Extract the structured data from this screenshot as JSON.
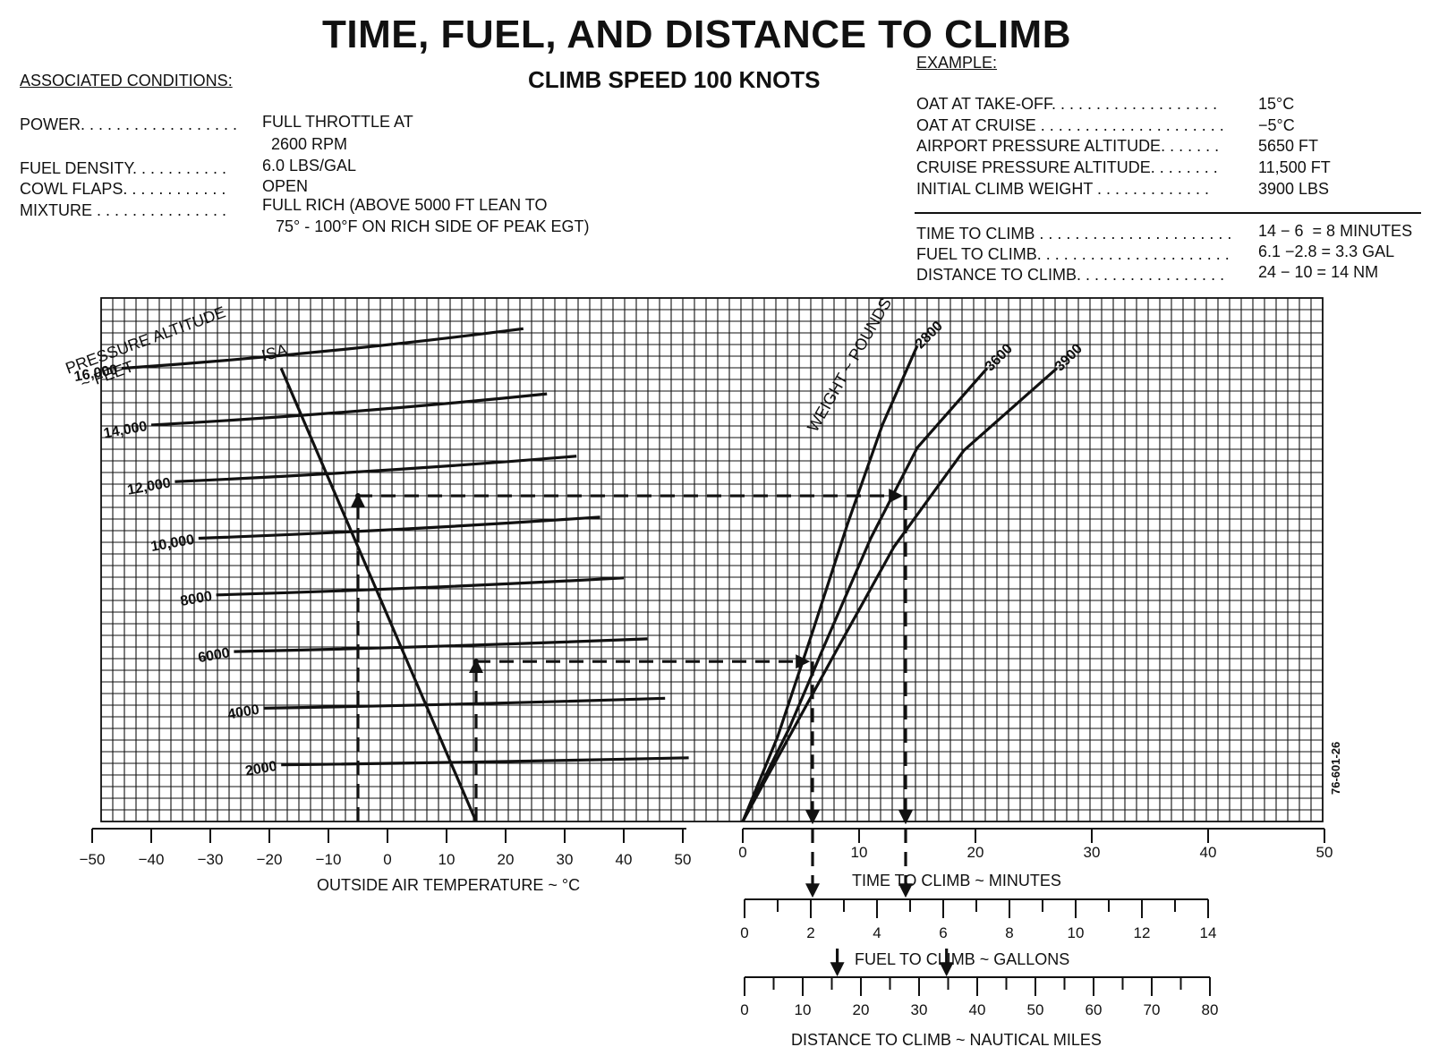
{
  "header": {
    "title": "TIME, FUEL, AND DISTANCE TO CLIMB",
    "subtitle": "CLIMB SPEED 100 KNOTS"
  },
  "associated_conditions": {
    "heading": "ASSOCIATED CONDITIONS:",
    "items": [
      {
        "label": "POWER. . . . . . . . . . . . . . . . . .",
        "value": "FULL THROTTLE AT"
      },
      {
        "label": "",
        "value": "  2600 RPM"
      },
      {
        "label": "FUEL DENSITY. . . . . . . . . . .",
        "value": "6.0 LBS/GAL"
      },
      {
        "label": "COWL FLAPS. . . . . . . . . . . .",
        "value": "OPEN"
      },
      {
        "label": "MIXTURE . . . . . . . . . . . . . . .",
        "value": "FULL RICH (ABOVE 5000 FT LEAN TO"
      },
      {
        "label": "",
        "value": "   75° - 100°F ON RICH SIDE OF PEAK EGT)"
      }
    ]
  },
  "example": {
    "heading": "EXAMPLE:",
    "inputs": [
      {
        "label": "OAT AT TAKE-OFF. . . . . . . . . . . . . . . . . . .",
        "value": "15°C"
      },
      {
        "label": "OAT AT CRUISE . . . . . . . . . . . . . . . . . . . . .",
        "value": "−5°C"
      },
      {
        "label": "AIRPORT PRESSURE ALTITUDE. . . . . . .",
        "value": "5650 FT"
      },
      {
        "label": "CRUISE PRESSURE ALTITUDE. . . . . . . .",
        "value": "11,500 FT"
      },
      {
        "label": "INITIAL CLIMB WEIGHT . . . . . . . . . . . . .",
        "value": "3900 LBS"
      }
    ],
    "results": [
      {
        "label": "TIME TO CLIMB . . . . . . . . . . . . . . . . . . . . . .",
        "value": "14 − 6  = 8 MINUTES"
      },
      {
        "label": "FUEL TO CLIMB. . . . . . . . . . . . . . . . . . . . . .",
        "value": "6.1 −2.8 = 3.3 GAL"
      },
      {
        "label": "DISTANCE TO CLIMB. . . . . . . . . . . . . . . . .",
        "value": "24 − 10 = 14 NM"
      }
    ]
  },
  "figure_id": "76-601-26",
  "colors": {
    "ink": "#111111",
    "paper": "#ffffff"
  },
  "chart_data": {
    "type": "line",
    "panels": [
      {
        "name": "temperature-altitude",
        "xlabel": "OUTSIDE AIR TEMPERATURE ~ °C",
        "ylabel_line1": "PRESSURE ALTITUDE",
        "ylabel_line2": "~ FEET",
        "x_ticks": [
          -50,
          -40,
          -30,
          -20,
          -10,
          0,
          10,
          20,
          30,
          40,
          50
        ],
        "x_tick_labels": [
          "−50",
          "−40",
          "−30",
          "−20",
          "−10",
          "0",
          "10",
          "20",
          "30",
          "40",
          "50"
        ],
        "isa_label": "ISA",
        "isa_line": [
          {
            "temp": -18,
            "alt": 16000
          },
          {
            "temp": 15,
            "alt": 0
          }
        ],
        "altitude_lines": [
          {
            "label": "16,000",
            "alt": 16000,
            "t_start": -45,
            "t_end": 23,
            "rise": 1400
          },
          {
            "label": "14,000",
            "alt": 14000,
            "t_start": -40,
            "t_end": 27,
            "rise": 1100
          },
          {
            "label": "12,000",
            "alt": 12000,
            "t_start": -36,
            "t_end": 32,
            "rise": 900
          },
          {
            "label": "10,000",
            "alt": 10000,
            "t_start": -32,
            "t_end": 36,
            "rise": 750
          },
          {
            "label": "8000",
            "alt": 8000,
            "t_start": -29,
            "t_end": 40,
            "rise": 600
          },
          {
            "label": "6000",
            "alt": 6000,
            "t_start": -26,
            "t_end": 44,
            "rise": 450
          },
          {
            "label": "4000",
            "alt": 4000,
            "t_start": -21,
            "t_end": 47,
            "rise": 350
          },
          {
            "label": "2000",
            "alt": 2000,
            "t_start": -18,
            "t_end": 51,
            "rise": 250
          }
        ]
      },
      {
        "name": "weight-time",
        "xlabel": "TIME TO CLIMB ~ MINUTES",
        "weight_label": "WEIGHT ~ POUNDS",
        "x_ticks": [
          0,
          10,
          20,
          30,
          40,
          50
        ],
        "x_tick_labels": [
          "0",
          "10",
          "20",
          "30",
          "40",
          "50"
        ],
        "weight_curves": [
          {
            "label": "2800",
            "points": [
              [
                0,
                0
              ],
              [
                3,
                3000
              ],
              [
                6,
                6700
              ],
              [
                9,
                10500
              ],
              [
                12,
                14000
              ],
              [
                15,
                16800
              ]
            ]
          },
          {
            "label": "3600",
            "points": [
              [
                0,
                0
              ],
              [
                4,
                3300
              ],
              [
                7,
                6200
              ],
              [
                11,
                10000
              ],
              [
                15,
                13200
              ],
              [
                21,
                16000
              ]
            ]
          },
          {
            "label": "3900",
            "points": [
              [
                0,
                0
              ],
              [
                4,
                3000
              ],
              [
                8,
                6000
              ],
              [
                13,
                9700
              ],
              [
                19,
                13100
              ],
              [
                27,
                16000
              ]
            ]
          }
        ]
      }
    ],
    "scales": [
      {
        "name": "fuel",
        "label": "FUEL  TO CLIMB ~ GALLONS",
        "min": 0,
        "max": 14,
        "tick_labels": [
          "0",
          "2",
          "4",
          "6",
          "8",
          "10",
          "12",
          "14"
        ]
      },
      {
        "name": "distance",
        "label": "DISTANCE TO CLIMB ~ NAUTICAL MILES",
        "min": 0,
        "max": 80,
        "tick_labels": [
          "0",
          "10",
          "20",
          "30",
          "40",
          "50",
          "60",
          "70",
          "80"
        ]
      }
    ],
    "example_paths": [
      {
        "name": "cruise",
        "oat": -5,
        "alt": 11500,
        "time": 14,
        "fuel": 6.1,
        "distance": 24
      },
      {
        "name": "takeoff",
        "oat": 15,
        "alt": 5650,
        "time": 6,
        "fuel": 2.8,
        "distance": 10
      }
    ],
    "alt_range": [
      0,
      17000
    ],
    "grid": true
  }
}
